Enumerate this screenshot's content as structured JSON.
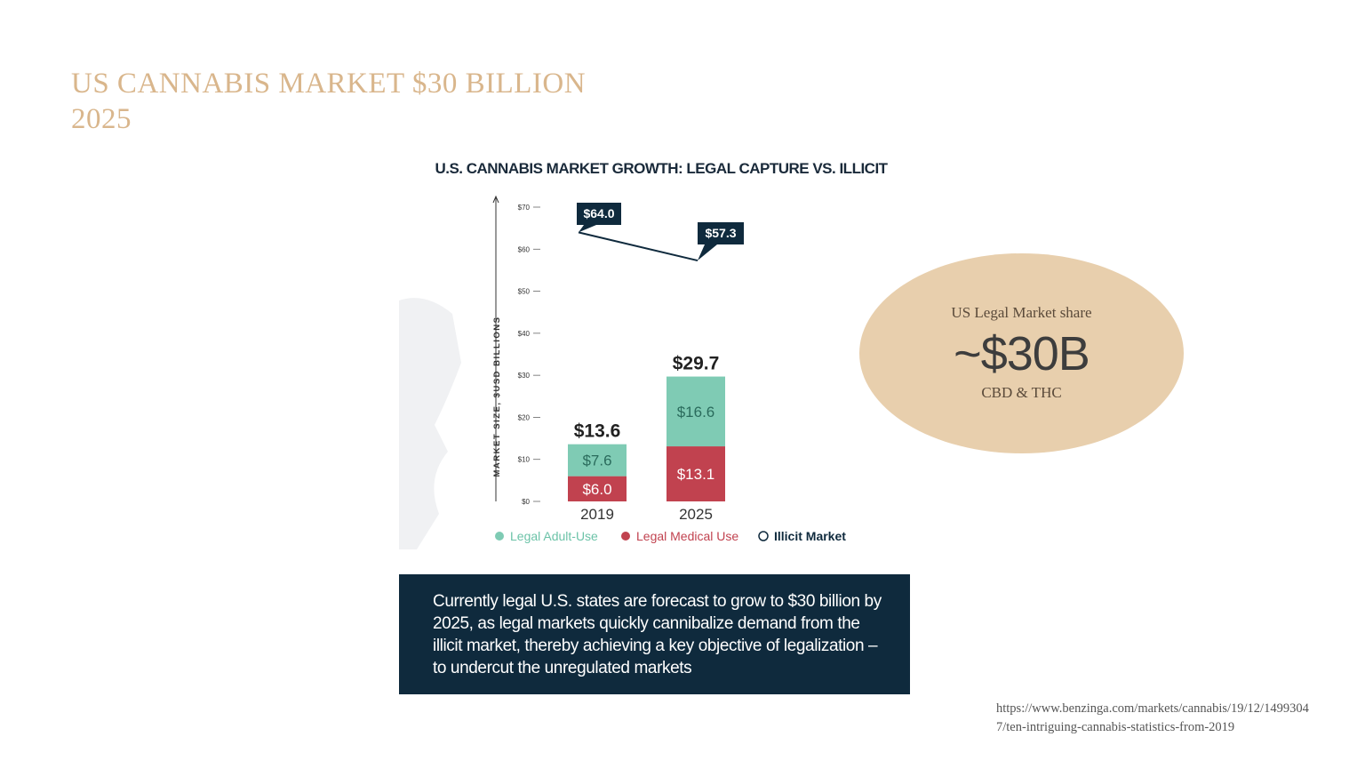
{
  "slide": {
    "title_line1": "US CANNABIS MARKET $30 BILLION",
    "title_line2": "2025"
  },
  "highlight": {
    "label": "US Legal Market share",
    "value": "~$30B",
    "sub": "CBD & THC"
  },
  "source": {
    "line1": "https://www.benzinga.com/markets/cannabis/19/12/1499304",
    "line2": "7/ten-intriguing-cannabis-statistics-from-2019"
  },
  "chart_data": {
    "type": "bar",
    "title": "U.S. CANNABIS MARKET GROWTH: LEGAL CAPTURE VS. ILLICIT",
    "ylabel": "MARKET SIZE, $USD BILLIONS",
    "ylim": [
      0,
      70
    ],
    "yticks": [
      "$0",
      "$10",
      "$20",
      "$30",
      "$40",
      "$50",
      "$60",
      "$70"
    ],
    "categories": [
      "2019",
      "2025"
    ],
    "stacked": true,
    "series": [
      {
        "name": "Legal Medical Use",
        "values": [
          6.0,
          13.1
        ],
        "labels": [
          "$6.0",
          "$13.1"
        ],
        "color": "#c1424f"
      },
      {
        "name": "Legal Adult-Use",
        "values": [
          7.6,
          16.6
        ],
        "labels": [
          "$7.6",
          "$16.6"
        ],
        "color": "#7fcbb4"
      }
    ],
    "totals": [
      "$13.6",
      "$29.7"
    ],
    "line_series": {
      "name": "Illicit Market",
      "values": [
        64.0,
        57.3
      ],
      "labels": [
        "$64.0",
        "$57.3"
      ],
      "color": "#0f2a3d"
    },
    "legend_position": "bottom",
    "caption": "Currently legal U.S. states are forecast to grow to $30 billion by 2025, as legal markets quickly cannibalize demand from the illicit market, thereby achieving a key objective of legalization – to undercut the unregulated markets"
  }
}
